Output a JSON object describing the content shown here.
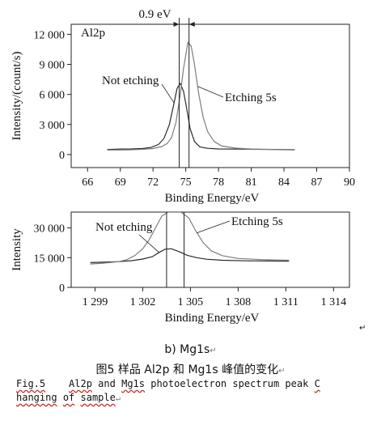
{
  "chart_data": [
    {
      "type": "line",
      "title": "Al2p",
      "xlabel": "Binding Energy/eV",
      "ylabel": "Intensity/(count/s)",
      "xlim": [
        64.5,
        90
      ],
      "ylim": [
        -1300,
        13000
      ],
      "x_ticks": [
        66,
        69,
        72,
        75,
        78,
        81,
        84,
        87,
        90
      ],
      "x_tick_labels": [
        "66",
        "69",
        "72",
        "75",
        "78",
        "81",
        "84",
        "87",
        "90"
      ],
      "y_ticks": [
        0,
        3000,
        6000,
        9000,
        12000
      ],
      "y_tick_labels": [
        "0",
        "3 000",
        "6 000",
        "9 000",
        "12 000"
      ],
      "series": [
        {
          "name": "Not etching",
          "x": [
            67.8,
            69,
            70,
            71,
            71.8,
            72.5,
            73,
            73.5,
            73.9,
            74.2,
            74.5,
            74.8,
            75.1,
            75.4,
            75.8,
            76.3,
            77,
            78,
            80,
            82,
            84,
            85
          ],
          "y": [
            500,
            550,
            560,
            600,
            700,
            1000,
            1600,
            3000,
            5000,
            6600,
            7100,
            6300,
            4500,
            2600,
            1300,
            750,
            620,
            560,
            540,
            520,
            500,
            480
          ]
        },
        {
          "name": "Etching 5s",
          "x": [
            67.8,
            69,
            70,
            71,
            72,
            72.8,
            73.3,
            73.7,
            74.1,
            74.5,
            74.8,
            75.2,
            75.5,
            75.8,
            76.2,
            76.6,
            77,
            77.6,
            78.3,
            79.5,
            81,
            83,
            85
          ],
          "y": [
            450,
            450,
            480,
            520,
            600,
            800,
            1100,
            1700,
            3200,
            6000,
            8600,
            11200,
            10800,
            9000,
            6000,
            3700,
            2300,
            1300,
            850,
            650,
            550,
            500,
            450
          ]
        }
      ],
      "annotations": [
        {
          "text": "0.9 eV",
          "x_from": 74.4,
          "x_to": 75.3
        },
        {
          "text": "Not etching"
        },
        {
          "text": "Etching 5s"
        }
      ],
      "vlines": [
        74.4,
        75.3
      ]
    },
    {
      "type": "line",
      "xlabel": "Binding Energy/eV",
      "ylabel": "Intensity",
      "xlim": [
        1297.5,
        1315
      ],
      "ylim": [
        0,
        38000
      ],
      "x_ticks": [
        1299,
        1302,
        1305,
        1308,
        1311,
        1314
      ],
      "x_tick_labels": [
        "1 299",
        "1 302",
        "1 305",
        "1 308",
        "1 311",
        "1 314"
      ],
      "y_ticks": [
        0,
        15000,
        30000
      ],
      "y_tick_labels": [
        "0",
        "15 000",
        "30 000"
      ],
      "series": [
        {
          "name": "Not etching",
          "x": [
            1298.7,
            1299.5,
            1300.5,
            1301.3,
            1302,
            1302.6,
            1303,
            1303.4,
            1303.8,
            1304.3,
            1304.8,
            1305.4,
            1306,
            1307,
            1308.5,
            1310,
            1311.2
          ],
          "y": [
            12500,
            12700,
            13000,
            13500,
            14300,
            15500,
            17500,
            19300,
            19500,
            18000,
            16200,
            15000,
            14200,
            13700,
            13400,
            13300,
            13200
          ]
        },
        {
          "name": "Etching 5s",
          "x": [
            1298.7,
            1299.5,
            1300.5,
            1301,
            1301.5,
            1302,
            1302.4,
            1302.8,
            1303.2,
            1303.6,
            1304.4,
            1304.9,
            1305.3,
            1305.8,
            1306.3,
            1307,
            1308,
            1309.5,
            1311.2
          ],
          "y": [
            11800,
            12200,
            13000,
            14000,
            16000,
            19500,
            24000,
            30000,
            36000,
            38000,
            38000,
            35000,
            29000,
            22500,
            18500,
            16000,
            14600,
            14000,
            13700
          ]
        }
      ],
      "annotations": [
        {
          "text": "Not etching"
        },
        {
          "text": "Etching 5s"
        }
      ],
      "vlines": [
        1303.5,
        1304.6
      ]
    }
  ],
  "captions": {
    "sub": "b) Mg1s",
    "zh": "图5  样品 Al2p 和 Mg1s 峰值的变化",
    "en_prefix": "Fig.5",
    "en_words": [
      "Al2p",
      "and",
      "Mg1s",
      "photoelectron",
      "spectrum",
      "peak",
      "C",
      "hanging",
      "of",
      "sample"
    ]
  }
}
